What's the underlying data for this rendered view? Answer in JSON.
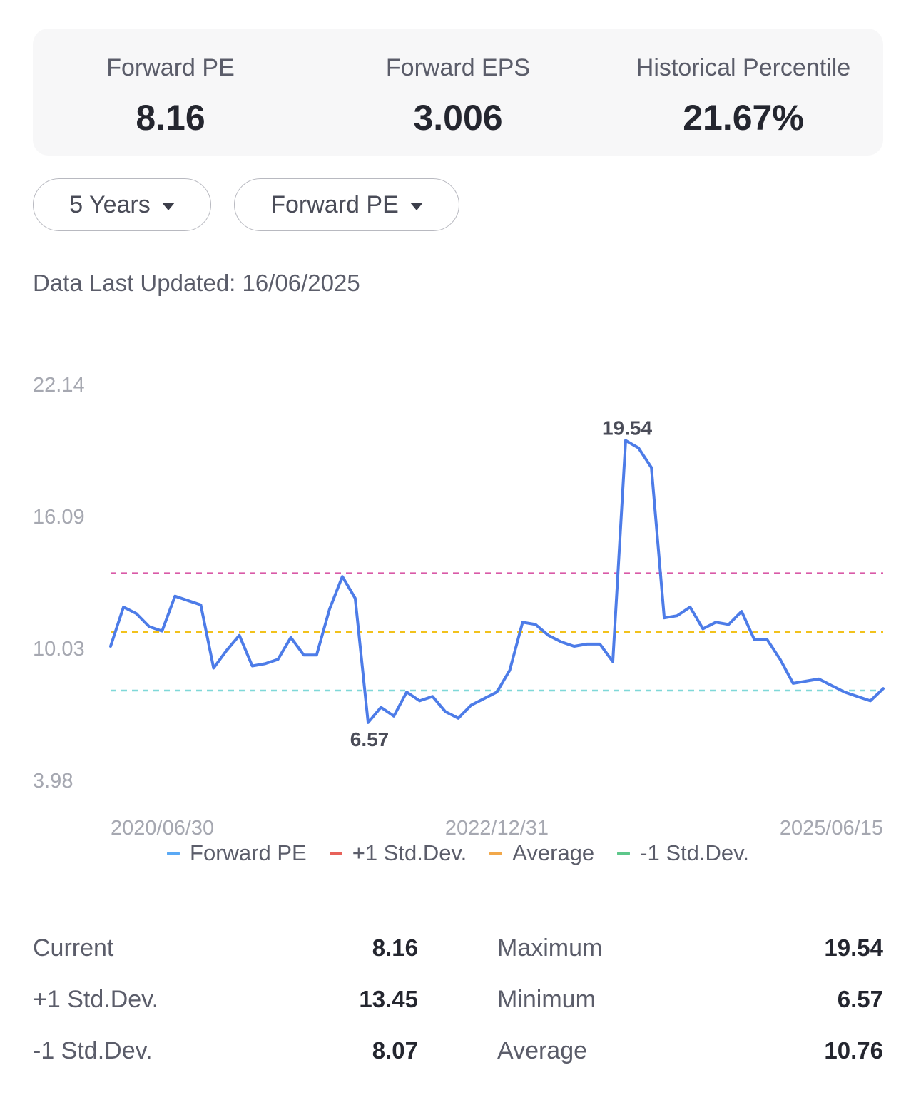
{
  "summary": {
    "forward_pe_label": "Forward PE",
    "forward_pe_value": "8.16",
    "forward_eps_label": "Forward EPS",
    "forward_eps_value": "3.006",
    "percentile_label": "Historical Percentile",
    "percentile_value": "21.67%"
  },
  "filters": {
    "period": "5 Years",
    "metric": "Forward PE"
  },
  "updated": {
    "label": "Data Last Updated:",
    "date": "16/06/2025"
  },
  "colors": {
    "line": "#4d7ce8",
    "plus_sd": "#d95aa8",
    "average": "#f2c21c",
    "minus_sd": "#7fd8d8",
    "legend_forward_pe": "#5aa9f5",
    "legend_plus_sd": "#e8625a",
    "legend_average": "#f2a84a",
    "legend_minus_sd": "#5dc78a"
  },
  "chart_data": {
    "type": "line",
    "ylim": [
      3.98,
      22.14
    ],
    "yticks": [
      "22.14",
      "16.09",
      "10.03",
      "3.98"
    ],
    "xticks": [
      "2020/06/30",
      "2022/12/31",
      "2025/06/15"
    ],
    "series": [
      {
        "name": "Forward PE",
        "values": [
          10.1,
          11.9,
          11.6,
          11.0,
          10.8,
          12.4,
          12.2,
          12.0,
          9.1,
          9.9,
          10.6,
          9.2,
          9.3,
          9.5,
          10.5,
          9.7,
          9.7,
          11.8,
          13.3,
          12.3,
          6.6,
          7.3,
          6.9,
          8.0,
          7.6,
          7.8,
          7.1,
          6.8,
          7.4,
          7.7,
          8.0,
          9.0,
          11.2,
          11.1,
          10.6,
          10.3,
          10.1,
          10.2,
          10.2,
          9.4,
          19.54,
          19.2,
          18.3,
          11.4,
          11.5,
          11.9,
          10.9,
          11.2,
          11.1,
          11.7,
          10.4,
          10.4,
          9.5,
          8.4,
          8.5,
          8.6,
          8.3,
          8.0,
          7.8,
          7.6,
          8.16
        ]
      },
      {
        "name": "+1 Std.Dev.",
        "value": 13.45
      },
      {
        "name": "Average",
        "value": 10.76
      },
      {
        "name": "-1 Std.Dev.",
        "value": 8.07
      }
    ],
    "annotations": [
      {
        "label": "19.54",
        "value": 19.54
      },
      {
        "label": "6.57",
        "value": 6.57
      }
    ],
    "legend": [
      "Forward PE",
      "+1 Std.Dev.",
      "Average",
      "-1 Std.Dev."
    ]
  },
  "stats": {
    "left": [
      {
        "label": "Current",
        "value": "8.16"
      },
      {
        "label": "+1 Std.Dev.",
        "value": "13.45"
      },
      {
        "label": "-1 Std.Dev.",
        "value": "8.07"
      }
    ],
    "right": [
      {
        "label": "Maximum",
        "value": "19.54"
      },
      {
        "label": "Minimum",
        "value": "6.57"
      },
      {
        "label": "Average",
        "value": "10.76"
      }
    ]
  }
}
